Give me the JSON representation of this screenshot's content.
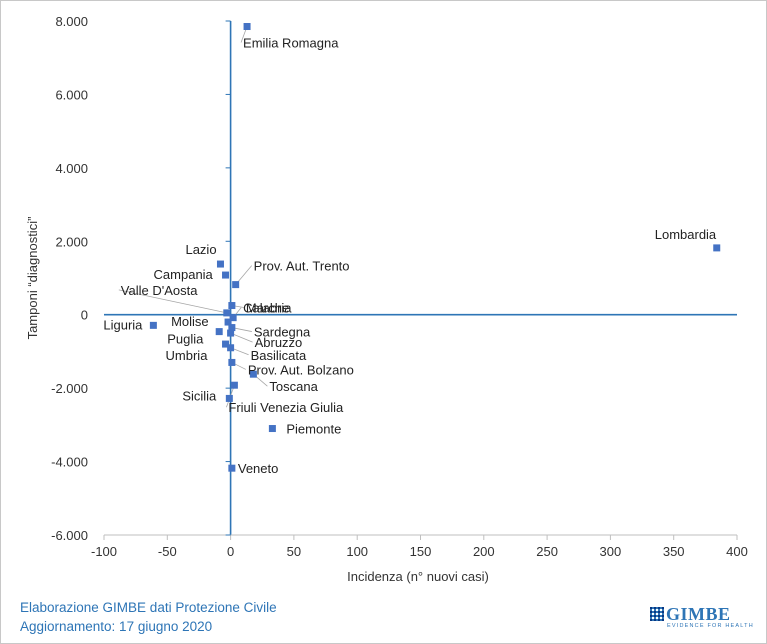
{
  "chart_data": {
    "type": "scatter",
    "xlabel": "Incidenza (n° nuovi casi)",
    "ylabel": "Tamponi “diagnostici”",
    "xlim": [
      -100,
      400
    ],
    "ylim": [
      -6000,
      8000
    ],
    "x_ticks": [
      "-100",
      "-50",
      "0",
      "50",
      "100",
      "150",
      "200",
      "250",
      "300",
      "350",
      "400"
    ],
    "y_ticks": [
      "8.000",
      "6.000",
      "4.000",
      "2.000",
      "0",
      "-2.000",
      "-4.000",
      "-6.000"
    ],
    "grid": false,
    "points": [
      {
        "label": "Emilia Romagna",
        "x": 13,
        "y": 7850
      },
      {
        "label": "Lombardia",
        "x": 384,
        "y": 1820
      },
      {
        "label": "Lazio",
        "x": -8,
        "y": 1380
      },
      {
        "label": "Campania",
        "x": -4,
        "y": 1080
      },
      {
        "label": "Prov. Aut. Trento",
        "x": 4,
        "y": 820
      },
      {
        "label": "Marche",
        "x": 1,
        "y": 250
      },
      {
        "label": "Valle D'Aosta",
        "x": -3,
        "y": 50
      },
      {
        "label": "Calabria",
        "x": 2,
        "y": -80
      },
      {
        "label": "Liguria",
        "x": -61,
        "y": -290
      },
      {
        "label": "Molise",
        "x": -2,
        "y": -200
      },
      {
        "label": "Sardegna",
        "x": 1,
        "y": -350
      },
      {
        "label": "Puglia",
        "x": -9,
        "y": -460
      },
      {
        "label": "Abruzzo",
        "x": 0,
        "y": -500
      },
      {
        "label": "Umbria",
        "x": -4,
        "y": -800
      },
      {
        "label": "Basilicata",
        "x": 0,
        "y": -900
      },
      {
        "label": "Prov. Aut. Bolzano",
        "x": 1,
        "y": -1300
      },
      {
        "label": "Toscana",
        "x": 18,
        "y": -1620
      },
      {
        "label": "Friuli Venezia Giulia",
        "x": 3,
        "y": -1920
      },
      {
        "label": "Sicilia",
        "x": -1,
        "y": -2280
      },
      {
        "label": "Piemonte",
        "x": 33,
        "y": -3100
      },
      {
        "label": "Veneto",
        "x": 1,
        "y": -4180
      }
    ],
    "marker_color": "#4472c4",
    "axis_color": "#2e75b6"
  },
  "footer": {
    "line1": "Elaborazione GIMBE dati Protezione Civile",
    "line2": "Aggiornamento: 17 giugno 2020"
  },
  "logo": {
    "name": "GIMBE",
    "tagline": "EVIDENCE FOR HEALTH",
    "icon": "gimbe-logo-icon"
  }
}
